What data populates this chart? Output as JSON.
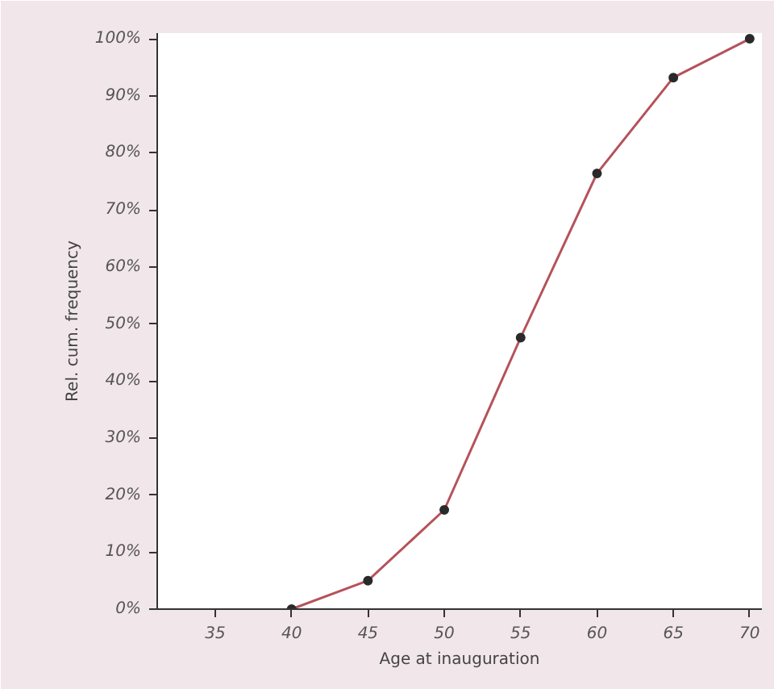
{
  "chart_data": {
    "type": "line",
    "xlabel": "Age at inauguration",
    "ylabel": "Rel. cum. frequency",
    "x": [
      40,
      45,
      50,
      55,
      60,
      65,
      70
    ],
    "series": [
      {
        "color": "#b5525a",
        "values": [
          0,
          5,
          17.4,
          47.6,
          76.4,
          93.2,
          100
        ]
      }
    ],
    "xlim": [
      31.2,
      70.8
    ],
    "xticks": [
      35,
      40,
      45,
      50,
      55,
      60,
      65,
      70
    ],
    "ylim": [
      0,
      101
    ],
    "yticks": [
      {
        "value": 0,
        "label": "0%"
      },
      {
        "value": 10,
        "label": "10%"
      },
      {
        "value": 20,
        "label": "20%"
      },
      {
        "value": 30,
        "label": "30%"
      },
      {
        "value": 40,
        "label": "40%"
      },
      {
        "value": 50,
        "label": "50%"
      },
      {
        "value": 60,
        "label": "60%"
      },
      {
        "value": 70,
        "label": "70%"
      },
      {
        "value": 80,
        "label": "80%"
      },
      {
        "value": 90,
        "label": "90%"
      },
      {
        "value": 100,
        "label": "100%"
      }
    ],
    "marker": "circle",
    "grid": false
  }
}
